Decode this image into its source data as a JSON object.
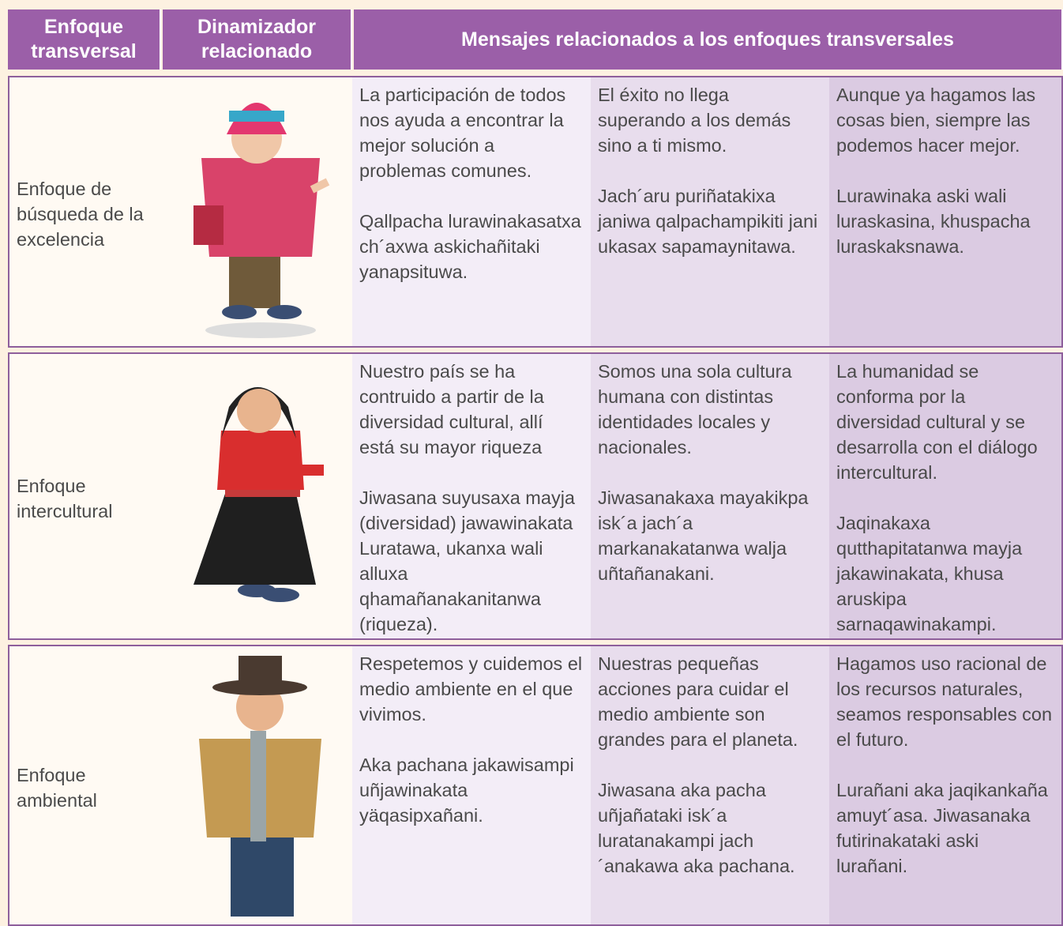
{
  "table": {
    "header": [
      "Enfoque transversal",
      "Dinamizador relacionado",
      "Mensajes relacionados a los enfoques transversales"
    ],
    "rows": [
      {
        "approach": "Enfoque de búsqueda de la excelencia",
        "messages": [
          [
            "La participación de todos nos ayuda a encontrar la mejor solución a problemas comunes.",
            "Qallpacha lurawinakasatxa ch´axwa askichañitaki yanapsituwa."
          ],
          [
            "El éxito no llega superando a los demás sino a ti mismo.",
            "Jach´aru puriñatakixa janiwa qalpachampikiti jani ukasax sapamaynitawa."
          ],
          [
            "Aunque ya hagamos las cosas bien, siempre las podemos hacer mejor.",
            "Lurawinaka aski wali luraskasina, khuspacha luraskaksnawa."
          ]
        ]
      },
      {
        "approach": "Enfoque intercultural",
        "messages": [
          [
            "Nuestro país se ha contruido a partir de la diversidad cultural, allí está su mayor riqueza",
            "Jiwasana suyusaxa mayja (diversidad) jawawinakata Luratawa, ukanxa wali alluxa qhamañanakanitanwa (riqueza)."
          ],
          [
            "Somos una sola cultura humana con distintas identidades locales y nacionales.",
            "Jiwasanakaxa mayakikpa isk´a jach´a markanakatanwa walja uñtañanakani."
          ],
          [
            "La humanidad se conforma por la diversidad cultural y se desarrolla con el diálogo intercultural.",
            "Jaqinakaxa qutthapitatanwa mayja jakawinakata, khusa aruskipa sarnaqawinakampi."
          ]
        ]
      },
      {
        "approach": "Enfoque ambiental",
        "messages": [
          [
            "Respetemos y cuidemos el medio ambiente en el que vivimos.",
            "Aka pachana jakawisampi uñjawinakata yäqasipxañani."
          ],
          [
            "Nuestras pequeñas acciones para cuidar el medio ambiente son grandes para el planeta.",
            "Jiwasana aka pacha uñjañataki isk´a luratanakampi jach´anakawa aka pachana."
          ],
          [
            "Hagamos uso racional de los recursos naturales, seamos responsables con el futuro.",
            "Lurañani aka jaqikankaña amuyt´asa. Jiwasanaka futirinakataki aski lurañani."
          ]
        ]
      }
    ]
  }
}
